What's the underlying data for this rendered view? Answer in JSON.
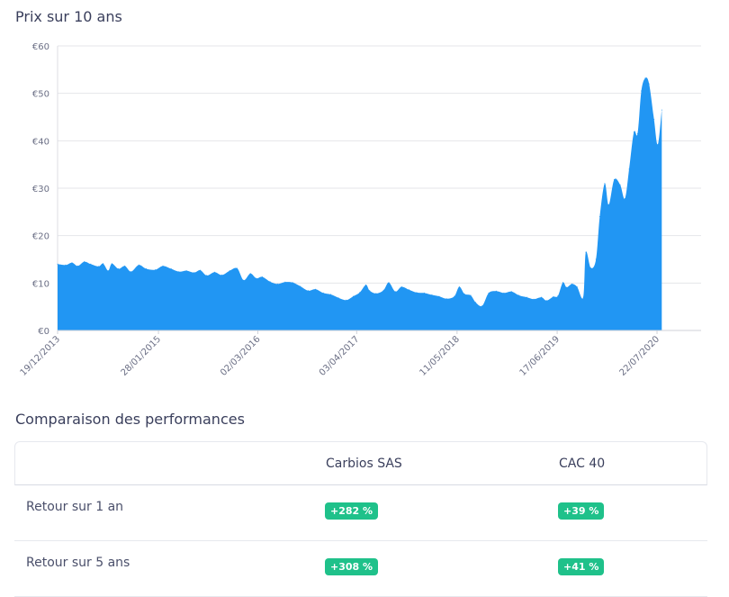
{
  "chart_section": {
    "title": "Prix sur 10 ans"
  },
  "chart_data": {
    "type": "area",
    "title": "Prix sur 10 ans",
    "y_ticks": [
      "€0",
      "€10",
      "€20",
      "€30",
      "€40",
      "€50",
      "€60"
    ],
    "ylim": [
      0,
      60
    ],
    "x_range": [
      "2013-12-19",
      "2021-01-15"
    ],
    "x_tick_labels": [
      "19/12/2013",
      "28/01/2015",
      "02/03/2016",
      "03/04/2017",
      "11/05/2018",
      "17/06/2019",
      "22/07/2020"
    ],
    "x_tick_dates": [
      "2013-12-19",
      "2015-01-28",
      "2016-03-02",
      "2017-04-03",
      "2018-05-11",
      "2019-06-17",
      "2020-07-22"
    ],
    "grid": true,
    "color": "#2196f3",
    "series": [
      {
        "points": [
          [
            "2013-12-19",
            14.0
          ],
          [
            "2014-01-20",
            13.8
          ],
          [
            "2014-02-15",
            14.3
          ],
          [
            "2014-03-10",
            13.6
          ],
          [
            "2014-04-05",
            14.5
          ],
          [
            "2014-05-01",
            14.0
          ],
          [
            "2014-06-01",
            13.5
          ],
          [
            "2014-06-20",
            14.1
          ],
          [
            "2014-07-10",
            12.6
          ],
          [
            "2014-07-25",
            14.1
          ],
          [
            "2014-08-20",
            13.0
          ],
          [
            "2014-09-15",
            13.6
          ],
          [
            "2014-10-10",
            12.4
          ],
          [
            "2014-11-10",
            13.8
          ],
          [
            "2014-12-10",
            13.0
          ],
          [
            "2015-01-15",
            12.8
          ],
          [
            "2015-02-15",
            13.6
          ],
          [
            "2015-03-20",
            13.0
          ],
          [
            "2015-04-20",
            12.4
          ],
          [
            "2015-05-20",
            12.6
          ],
          [
            "2015-06-20",
            12.2
          ],
          [
            "2015-07-15",
            12.7
          ],
          [
            "2015-08-10",
            11.6
          ],
          [
            "2015-09-10",
            12.3
          ],
          [
            "2015-10-10",
            11.7
          ],
          [
            "2015-11-10",
            12.6
          ],
          [
            "2015-12-10",
            13.1
          ],
          [
            "2016-01-05",
            10.6
          ],
          [
            "2016-02-01",
            12.0
          ],
          [
            "2016-02-25",
            11.0
          ],
          [
            "2016-03-20",
            11.3
          ],
          [
            "2016-04-20",
            10.3
          ],
          [
            "2016-05-20",
            9.8
          ],
          [
            "2016-06-20",
            10.2
          ],
          [
            "2016-07-20",
            10.1
          ],
          [
            "2016-08-20",
            9.3
          ],
          [
            "2016-09-20",
            8.4
          ],
          [
            "2016-10-20",
            8.7
          ],
          [
            "2016-11-20",
            7.9
          ],
          [
            "2016-12-20",
            7.6
          ],
          [
            "2017-01-20",
            6.9
          ],
          [
            "2017-02-20",
            6.4
          ],
          [
            "2017-03-20",
            7.2
          ],
          [
            "2017-04-15",
            8.0
          ],
          [
            "2017-05-10",
            9.6
          ],
          [
            "2017-05-25",
            8.4
          ],
          [
            "2017-06-20",
            7.8
          ],
          [
            "2017-07-20",
            8.5
          ],
          [
            "2017-08-10",
            10.1
          ],
          [
            "2017-09-05",
            8.2
          ],
          [
            "2017-09-30",
            9.2
          ],
          [
            "2017-10-30",
            8.6
          ],
          [
            "2017-11-30",
            8.0
          ],
          [
            "2017-12-30",
            7.9
          ],
          [
            "2018-01-30",
            7.5
          ],
          [
            "2018-02-28",
            7.2
          ],
          [
            "2018-03-30",
            6.7
          ],
          [
            "2018-04-30",
            7.2
          ],
          [
            "2018-05-20",
            9.2
          ],
          [
            "2018-06-10",
            7.7
          ],
          [
            "2018-07-05",
            7.4
          ],
          [
            "2018-07-25",
            5.9
          ],
          [
            "2018-08-20",
            5.2
          ],
          [
            "2018-09-15",
            7.9
          ],
          [
            "2018-10-15",
            8.3
          ],
          [
            "2018-11-15",
            7.9
          ],
          [
            "2018-12-15",
            8.2
          ],
          [
            "2019-01-15",
            7.4
          ],
          [
            "2019-02-15",
            7.0
          ],
          [
            "2019-03-15",
            6.6
          ],
          [
            "2019-04-15",
            7.0
          ],
          [
            "2019-05-05",
            6.3
          ],
          [
            "2019-06-01",
            7.1
          ],
          [
            "2019-06-20",
            7.3
          ],
          [
            "2019-07-10",
            10.1
          ],
          [
            "2019-07-25",
            9.1
          ],
          [
            "2019-08-15",
            9.8
          ],
          [
            "2019-09-05",
            9.2
          ],
          [
            "2019-09-30",
            7.0
          ],
          [
            "2019-10-10",
            16.5
          ],
          [
            "2019-10-30",
            13.2
          ],
          [
            "2019-11-20",
            15.0
          ],
          [
            "2019-12-05",
            24.0
          ],
          [
            "2019-12-25",
            31.0
          ],
          [
            "2020-01-10",
            26.5
          ],
          [
            "2020-02-01",
            31.8
          ],
          [
            "2020-02-25",
            30.7
          ],
          [
            "2020-03-15",
            27.8
          ],
          [
            "2020-04-01",
            34.0
          ],
          [
            "2020-04-20",
            41.8
          ],
          [
            "2020-05-05",
            41.5
          ],
          [
            "2020-05-20",
            50.5
          ],
          [
            "2020-06-05",
            53.2
          ],
          [
            "2020-06-20",
            52.0
          ],
          [
            "2020-07-10",
            44.5
          ],
          [
            "2020-07-25",
            39.2
          ],
          [
            "2020-08-10",
            46.5
          ]
        ]
      }
    ]
  },
  "performance": {
    "title": "Comparaison des performances",
    "columns": [
      "",
      "Carbios SAS",
      "CAC 40"
    ],
    "rows": [
      {
        "label": "Retour sur 1 an",
        "carbios": "+282 %",
        "cac": "+39 %"
      },
      {
        "label": "Retour sur 5 ans",
        "carbios": "+308 %",
        "cac": "+41 %"
      }
    ]
  }
}
